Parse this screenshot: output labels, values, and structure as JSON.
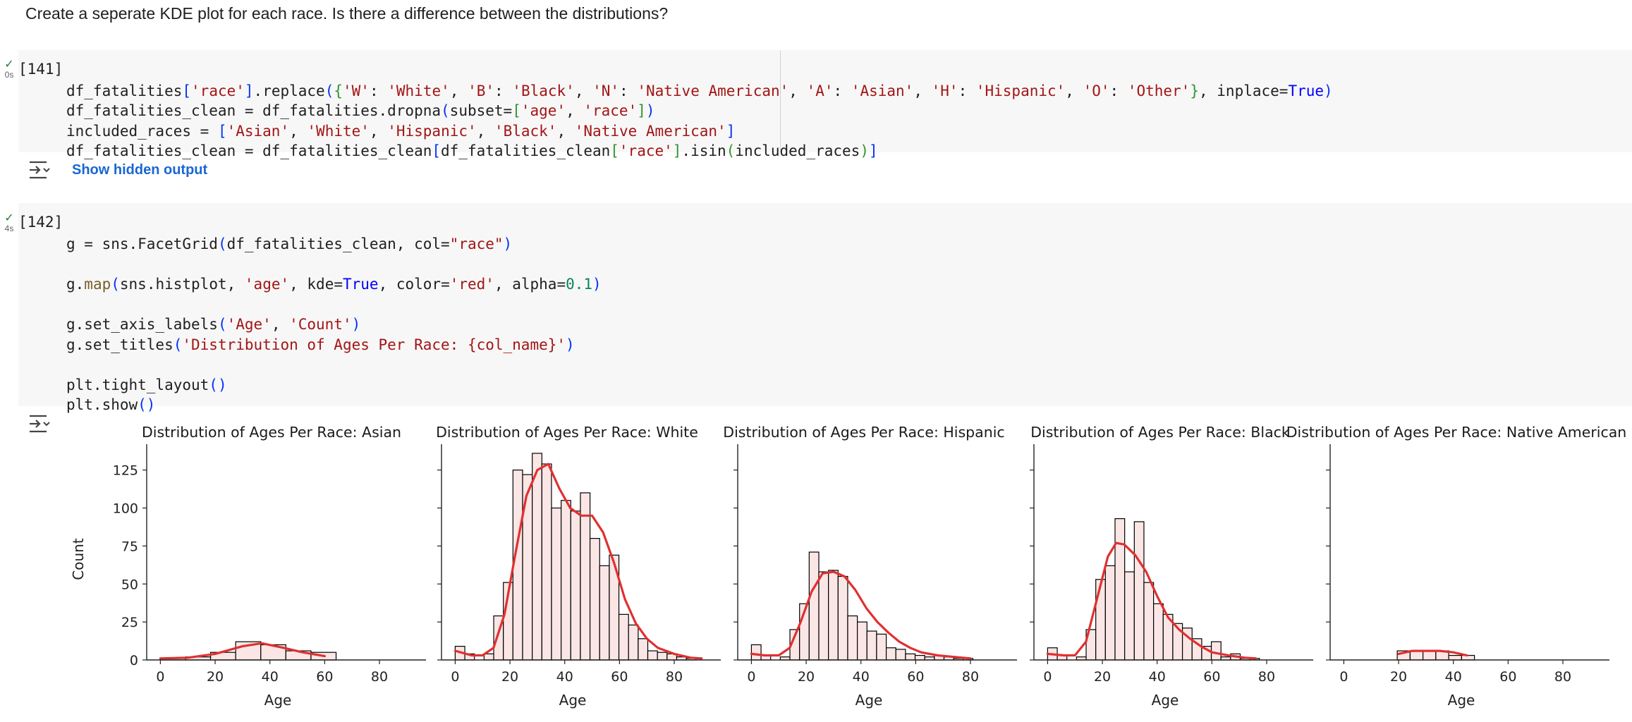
{
  "markdown": {
    "text": "Create a seperate KDE plot for each race. Is there a difference between the distributions?"
  },
  "cells": [
    {
      "exec_count": "[141]",
      "exec_time": "0s",
      "output_toggle": "Show hidden output"
    },
    {
      "exec_count": "[142]",
      "exec_time": "4s"
    }
  ],
  "icons": {
    "status": "checkmark-icon",
    "output_toggle": "collapse-output-icon",
    "accent_color": "#1967d2",
    "success_color": "#188038"
  },
  "chart_data": {
    "type": "bar",
    "description_kind": "facet histogram with kde overlay",
    "ylabel": "Count",
    "xlabel": "Age",
    "xlim": [
      -5,
      97
    ],
    "ylim": [
      0,
      142
    ],
    "xticks": [
      0,
      20,
      40,
      60,
      80
    ],
    "yticks": [
      0,
      25,
      50,
      75,
      100,
      125
    ],
    "bar_color": "#fbe6e6",
    "edge_color": "#000000",
    "kde_color": "#e03030",
    "panels": [
      {
        "title": "Distribution of Ages Per Race: Asian",
        "bins": [
          [
            0,
            9.17
          ],
          [
            9.17,
            18.33
          ],
          [
            18.33,
            27.5
          ],
          [
            27.5,
            36.67
          ],
          [
            36.67,
            45.83
          ],
          [
            45.83,
            55
          ],
          [
            55,
            64.17
          ]
        ],
        "counts": [
          1,
          2,
          5,
          12,
          10,
          6,
          5
        ],
        "kde": [
          [
            0,
            1
          ],
          [
            10,
            1.5
          ],
          [
            20,
            4
          ],
          [
            30,
            9
          ],
          [
            37,
            11
          ],
          [
            45,
            8
          ],
          [
            52,
            5
          ],
          [
            60,
            2.5
          ]
        ]
      },
      {
        "title": "Distribution of Ages Per Race: White",
        "bins": [
          [
            0,
            3.52
          ],
          [
            3.52,
            7.03
          ],
          [
            7.03,
            10.55
          ],
          [
            10.55,
            14.07
          ],
          [
            14.07,
            17.59
          ],
          [
            17.59,
            21.1
          ],
          [
            21.1,
            24.62
          ],
          [
            24.62,
            28.14
          ],
          [
            28.14,
            31.66
          ],
          [
            31.66,
            35.17
          ],
          [
            35.17,
            38.69
          ],
          [
            38.69,
            42.21
          ],
          [
            42.21,
            45.72
          ],
          [
            45.72,
            49.24
          ],
          [
            49.24,
            52.76
          ],
          [
            52.76,
            56.28
          ],
          [
            56.28,
            59.79
          ],
          [
            59.79,
            63.31
          ],
          [
            63.31,
            66.83
          ],
          [
            66.83,
            70.34
          ],
          [
            70.34,
            73.86
          ],
          [
            73.86,
            77.38
          ],
          [
            77.38,
            80.9
          ],
          [
            80.9,
            84.41
          ],
          [
            84.41,
            87.93
          ]
        ],
        "counts": [
          9,
          4,
          0,
          4,
          29,
          51,
          125,
          122,
          136,
          129,
          100,
          105,
          98,
          110,
          80,
          62,
          69,
          30,
          23,
          14,
          6,
          5,
          4,
          2,
          1
        ],
        "kde": [
          [
            0,
            6
          ],
          [
            6,
            3
          ],
          [
            10,
            3
          ],
          [
            14,
            8
          ],
          [
            18,
            30
          ],
          [
            22,
            70
          ],
          [
            26,
            108
          ],
          [
            30,
            125
          ],
          [
            34,
            129
          ],
          [
            38,
            113
          ],
          [
            42,
            100
          ],
          [
            46,
            95
          ],
          [
            50,
            95
          ],
          [
            54,
            84
          ],
          [
            58,
            64
          ],
          [
            62,
            40
          ],
          [
            66,
            24
          ],
          [
            70,
            14
          ],
          [
            74,
            8
          ],
          [
            80,
            4
          ],
          [
            86,
            1.5
          ],
          [
            90,
            1
          ]
        ]
      },
      {
        "title": "Distribution of Ages Per Race: Hispanic",
        "bins": [
          [
            0,
            3.52
          ],
          [
            3.52,
            7.03
          ],
          [
            7.03,
            10.55
          ],
          [
            10.55,
            14.07
          ],
          [
            14.07,
            17.59
          ],
          [
            17.59,
            21.1
          ],
          [
            21.1,
            24.62
          ],
          [
            24.62,
            28.14
          ],
          [
            28.14,
            31.66
          ],
          [
            31.66,
            35.17
          ],
          [
            35.17,
            38.69
          ],
          [
            38.69,
            42.21
          ],
          [
            42.21,
            45.72
          ],
          [
            45.72,
            49.24
          ],
          [
            49.24,
            52.76
          ],
          [
            52.76,
            56.28
          ],
          [
            56.28,
            59.79
          ],
          [
            59.79,
            63.31
          ],
          [
            63.31,
            66.83
          ],
          [
            66.83,
            70.34
          ],
          [
            70.34,
            73.86
          ],
          [
            73.86,
            77.38
          ],
          [
            77.38,
            80.9
          ]
        ],
        "counts": [
          10,
          3,
          0,
          2,
          20,
          37,
          71,
          58,
          59,
          55,
          29,
          25,
          19,
          17,
          8,
          7,
          4,
          3,
          2,
          3,
          2,
          1,
          1
        ],
        "kde": [
          [
            0,
            4
          ],
          [
            5,
            3
          ],
          [
            10,
            3
          ],
          [
            14,
            8
          ],
          [
            18,
            25
          ],
          [
            22,
            45
          ],
          [
            26,
            57
          ],
          [
            30,
            58
          ],
          [
            34,
            55
          ],
          [
            38,
            46
          ],
          [
            42,
            34
          ],
          [
            46,
            25
          ],
          [
            50,
            18
          ],
          [
            54,
            12
          ],
          [
            58,
            8
          ],
          [
            62,
            5
          ],
          [
            68,
            3
          ],
          [
            74,
            2
          ],
          [
            80,
            1
          ]
        ]
      },
      {
        "title": "Distribution of Ages Per Race: Black",
        "bins": [
          [
            0,
            3.52
          ],
          [
            3.52,
            7.03
          ],
          [
            7.03,
            10.55
          ],
          [
            10.55,
            14.07
          ],
          [
            14.07,
            17.59
          ],
          [
            17.59,
            21.1
          ],
          [
            21.1,
            24.62
          ],
          [
            24.62,
            28.14
          ],
          [
            28.14,
            31.66
          ],
          [
            31.66,
            35.17
          ],
          [
            35.17,
            38.69
          ],
          [
            38.69,
            42.21
          ],
          [
            42.21,
            45.72
          ],
          [
            45.72,
            49.24
          ],
          [
            49.24,
            52.76
          ],
          [
            52.76,
            56.28
          ],
          [
            56.28,
            59.79
          ],
          [
            59.79,
            63.31
          ],
          [
            63.31,
            66.83
          ],
          [
            66.83,
            70.34
          ],
          [
            70.34,
            73.86
          ],
          [
            73.86,
            77.38
          ]
        ],
        "counts": [
          8,
          3,
          0,
          2,
          20,
          53,
          62,
          93,
          58,
          91,
          51,
          37,
          30,
          24,
          21,
          14,
          9,
          12,
          2,
          4,
          1,
          1
        ],
        "kde": [
          [
            0,
            4
          ],
          [
            6,
            3
          ],
          [
            10,
            3
          ],
          [
            14,
            12
          ],
          [
            18,
            40
          ],
          [
            22,
            68
          ],
          [
            25,
            77
          ],
          [
            28,
            76
          ],
          [
            32,
            69
          ],
          [
            36,
            58
          ],
          [
            40,
            42
          ],
          [
            44,
            28
          ],
          [
            48,
            20
          ],
          [
            52,
            14
          ],
          [
            56,
            9
          ],
          [
            60,
            5
          ],
          [
            66,
            3
          ],
          [
            72,
            1.5
          ],
          [
            76,
            1
          ]
        ]
      },
      {
        "title": "Distribution of Ages Per Race: Native American",
        "bins": [
          [
            19.5,
            24.2
          ],
          [
            24.2,
            28.9
          ],
          [
            28.9,
            33.6
          ],
          [
            33.6,
            38.3
          ],
          [
            38.3,
            43
          ],
          [
            43,
            47.7
          ]
        ],
        "counts": [
          6,
          6,
          6,
          6,
          3,
          3
        ],
        "kde": [
          [
            20,
            4
          ],
          [
            25,
            6
          ],
          [
            30,
            6
          ],
          [
            35,
            6
          ],
          [
            40,
            5
          ],
          [
            45,
            3
          ]
        ]
      }
    ]
  }
}
